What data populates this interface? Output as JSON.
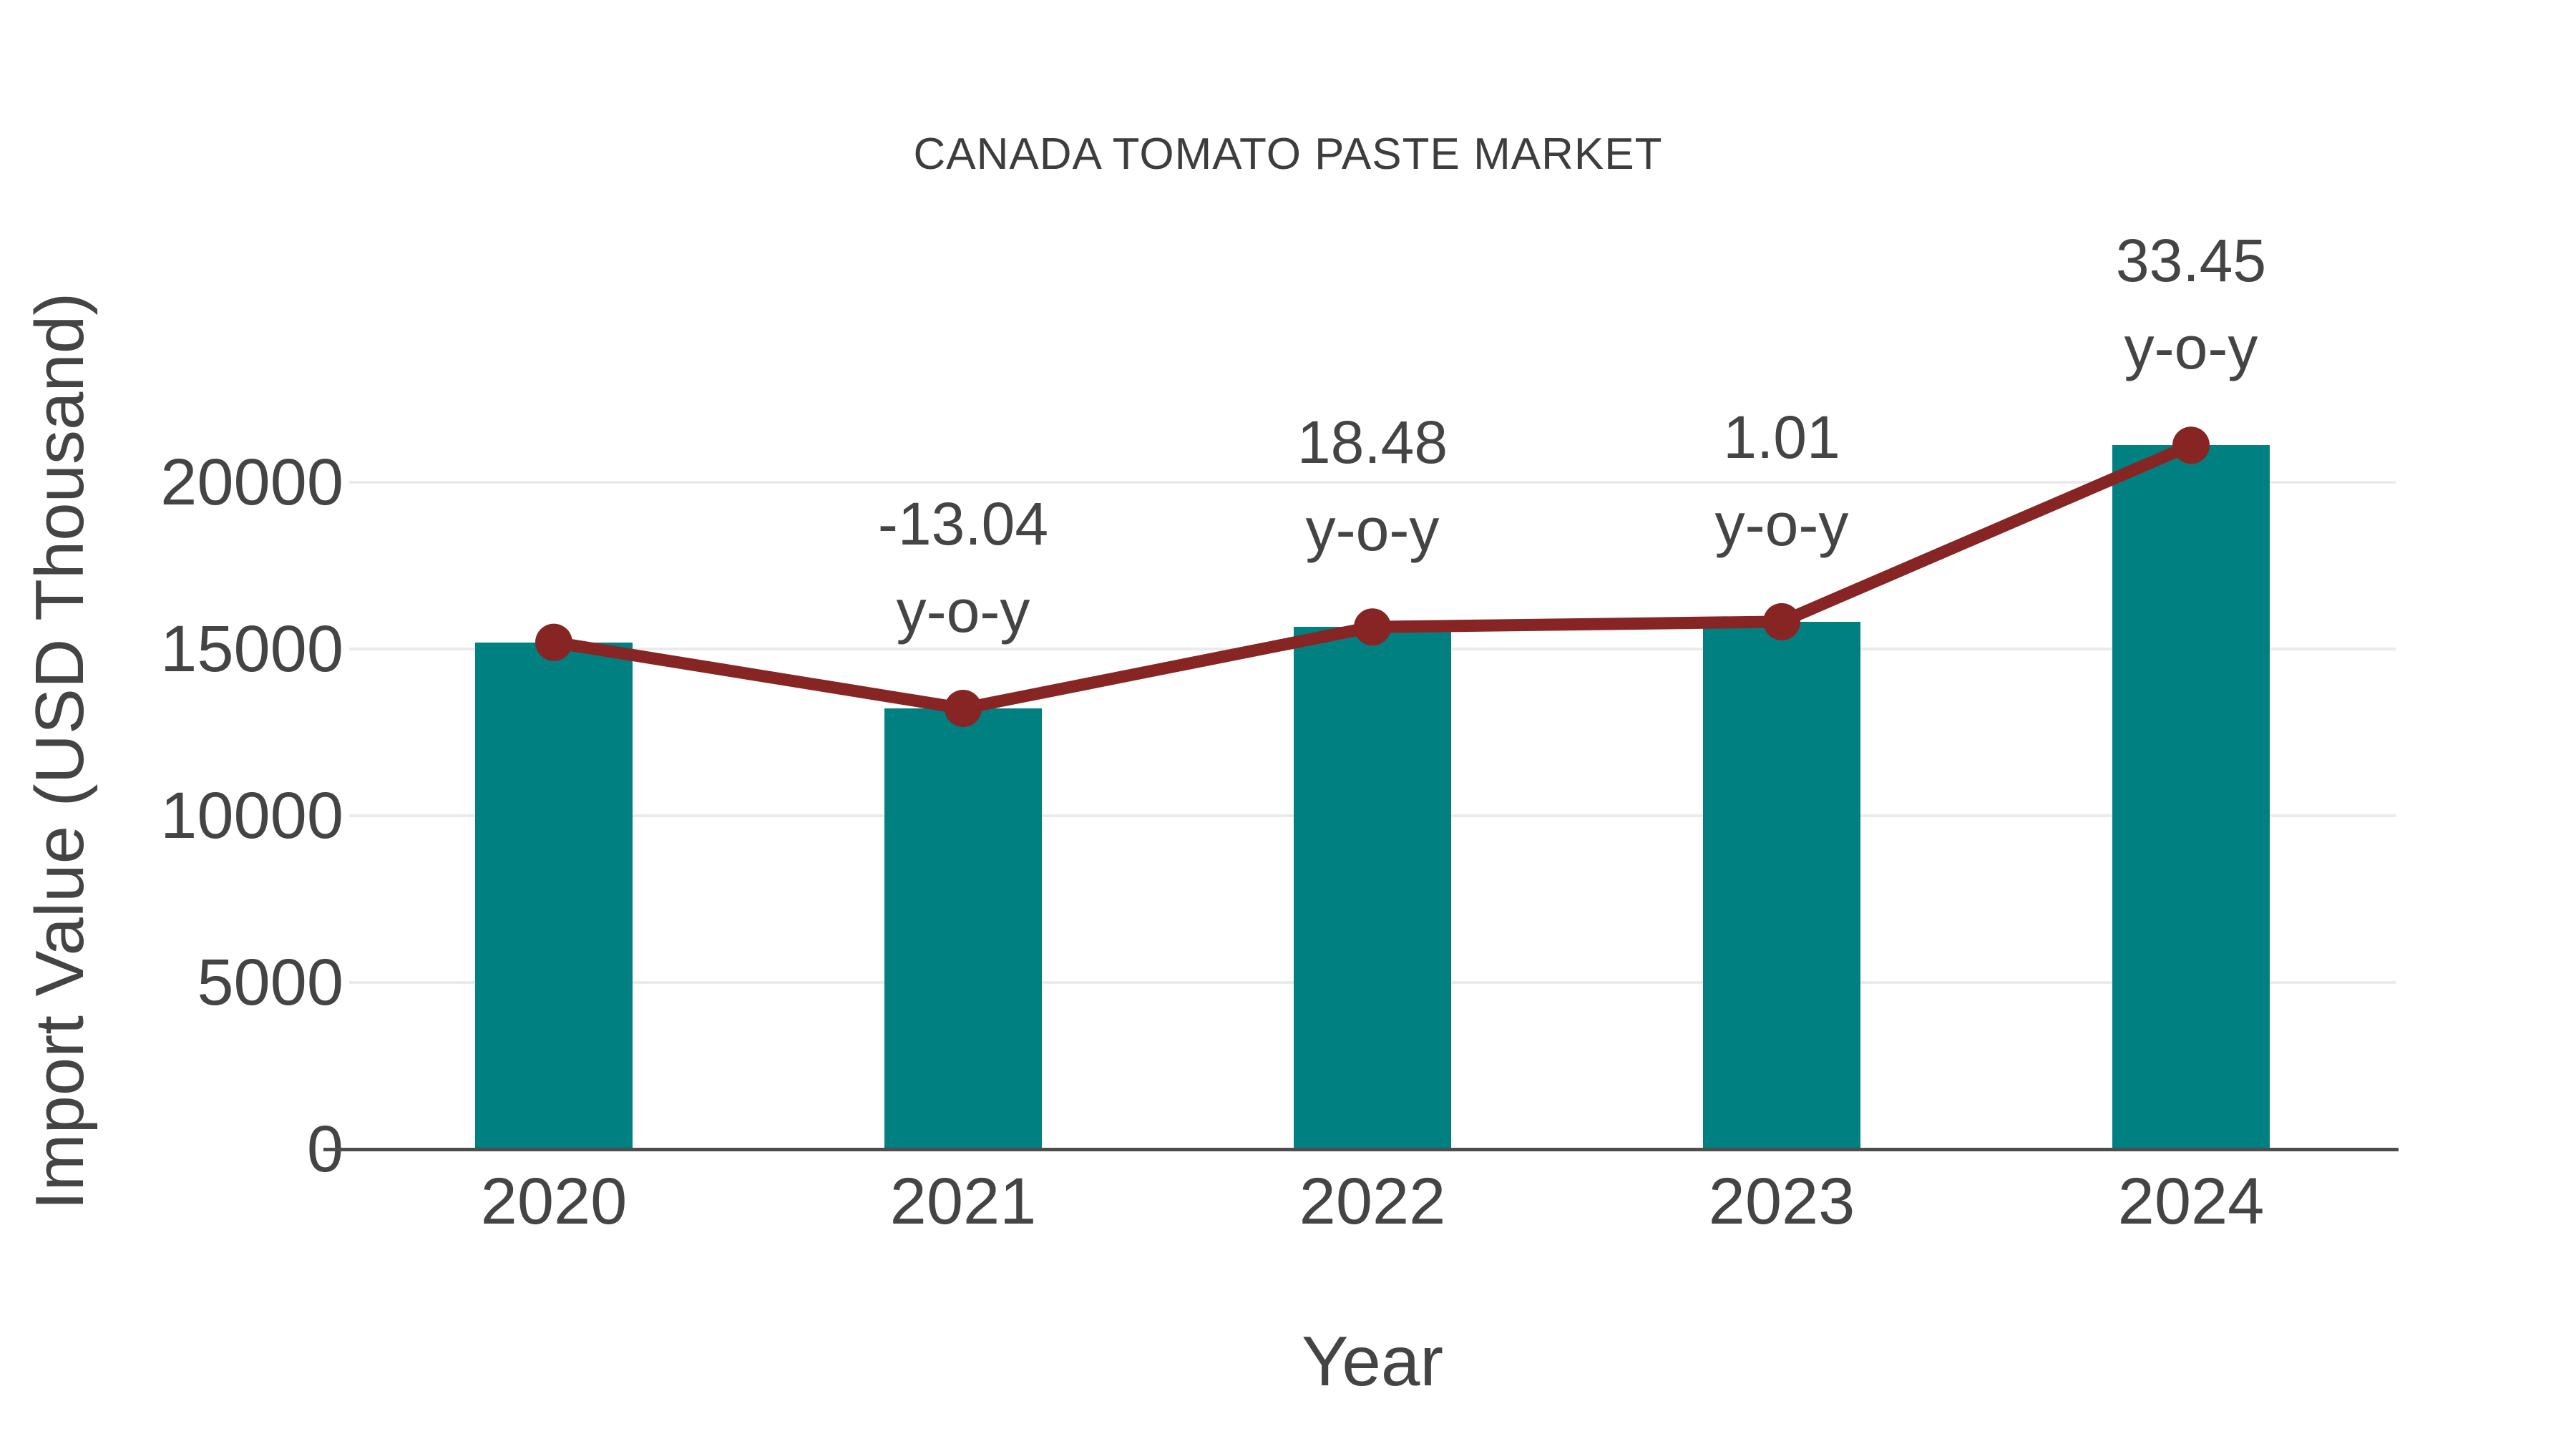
{
  "title": "CANADA TOMATO PASTE MARKET",
  "x_axis_title": "Year",
  "y_axis_title": "Import Value (USD Thousand)",
  "colors": {
    "bar": "#008080",
    "line": "#862523",
    "marker": "#862523",
    "text": "#444444",
    "title_text": "#3d3d3d",
    "gridline": "#ebebeb",
    "axis_line": "#4d4d4d",
    "background": "#ffffff"
  },
  "chart_data": {
    "type": "bar",
    "title": "CANADA TOMATO PASTE MARKET",
    "xlabel": "Year",
    "ylabel": "Import Value (USD Thousand)",
    "categories": [
      "2020",
      "2021",
      "2022",
      "2023",
      "2024"
    ],
    "series": [
      {
        "name": "Import Value (USD Thousand)",
        "type": "bar",
        "values": [
          15200,
          13218,
          15661,
          15819,
          21111
        ]
      },
      {
        "name": "y-o-y trend line",
        "type": "line",
        "values": [
          15200,
          13218,
          15661,
          15819,
          21111
        ]
      }
    ],
    "y_ticks": [
      "0",
      "5000",
      "10000",
      "15000",
      "20000"
    ],
    "y_tick_values": [
      0,
      5000,
      10000,
      15000,
      20000
    ],
    "ylim": [
      0,
      26500
    ],
    "grid": true,
    "legend_position": "none",
    "annotations": [
      {
        "category": "2021",
        "value_line": "-13.04",
        "suffix_line": "y-o-y"
      },
      {
        "category": "2022",
        "value_line": "18.48",
        "suffix_line": "y-o-y"
      },
      {
        "category": "2023",
        "value_line": "1.01",
        "suffix_line": "y-o-y"
      },
      {
        "category": "2024",
        "value_line": "33.45",
        "suffix_line": "y-o-y"
      }
    ]
  }
}
